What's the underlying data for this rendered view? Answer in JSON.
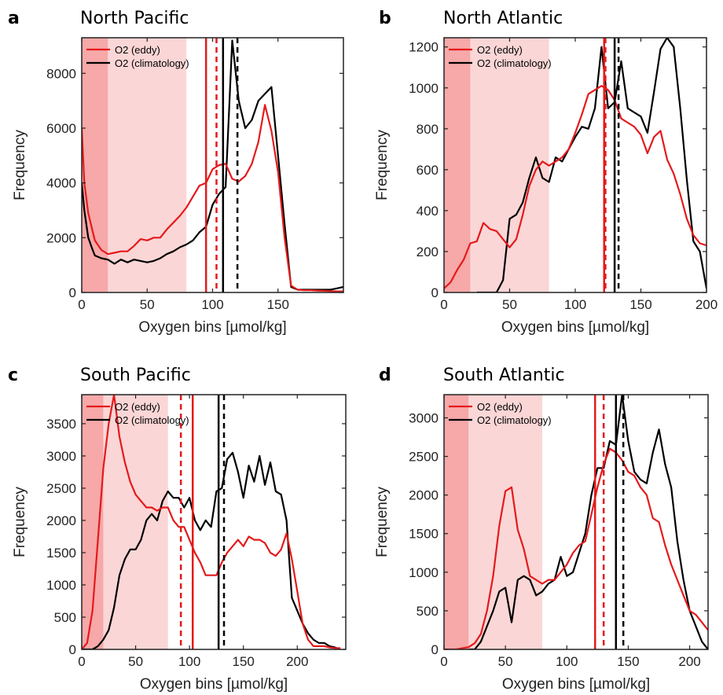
{
  "chart_data": [
    {
      "type": "line",
      "panel": "a",
      "title": "North Pacific",
      "xlabel": "Oxygen bins [µmol/kg]",
      "ylabel": "Frequency",
      "xlim": [
        0,
        200
      ],
      "ylim": [
        0,
        9300
      ],
      "xticks": [
        0,
        50,
        100,
        150
      ],
      "yticks": [
        0,
        2000,
        4000,
        6000,
        8000
      ],
      "legend_position": "top-left",
      "shade_dark": [
        0,
        20
      ],
      "shade_light": [
        20,
        80
      ],
      "series": [
        {
          "name": "O2 (eddy)",
          "color": "#e41a1c",
          "x": [
            0,
            2,
            5,
            8,
            10,
            15,
            20,
            25,
            30,
            35,
            40,
            45,
            50,
            55,
            60,
            65,
            70,
            75,
            80,
            85,
            90,
            95,
            100,
            105,
            110,
            115,
            120,
            125,
            130,
            135,
            140,
            145,
            150,
            155,
            160,
            165,
            170,
            175,
            180,
            185,
            190,
            195,
            200
          ],
          "y": [
            6000,
            4000,
            2900,
            2300,
            1900,
            1550,
            1400,
            1450,
            1500,
            1500,
            1700,
            1950,
            1900,
            2000,
            2000,
            2300,
            2550,
            2800,
            3100,
            3500,
            3900,
            4000,
            4500,
            4650,
            4700,
            4150,
            4050,
            4250,
            4700,
            5500,
            6850,
            5900,
            4400,
            2000,
            250,
            100,
            80,
            80,
            70,
            60,
            50,
            40,
            40
          ]
        },
        {
          "name": "O2 (climatology)",
          "color": "#000000",
          "x": [
            0,
            2,
            5,
            8,
            10,
            15,
            20,
            25,
            30,
            35,
            40,
            45,
            50,
            55,
            60,
            65,
            70,
            75,
            80,
            85,
            90,
            95,
            100,
            105,
            110,
            115,
            120,
            125,
            130,
            135,
            140,
            145,
            150,
            155,
            160,
            165,
            170,
            175,
            180,
            185,
            190,
            195,
            200
          ],
          "y": [
            4000,
            3000,
            2000,
            1600,
            1350,
            1250,
            1200,
            1050,
            1200,
            1100,
            1200,
            1150,
            1100,
            1150,
            1250,
            1400,
            1500,
            1650,
            1750,
            1900,
            2200,
            2400,
            3200,
            3600,
            3850,
            9200,
            7000,
            6000,
            6300,
            7000,
            7250,
            7500,
            5000,
            2500,
            200,
            100,
            100,
            100,
            100,
            100,
            100,
            150,
            200
          ]
        }
      ],
      "vlines": [
        {
          "x": 95,
          "color": "#e41a1c",
          "style": "solid"
        },
        {
          "x": 103,
          "color": "#e41a1c",
          "style": "dashed"
        },
        {
          "x": 108,
          "color": "#000000",
          "style": "solid"
        },
        {
          "x": 119,
          "color": "#000000",
          "style": "dashed"
        }
      ]
    },
    {
      "type": "line",
      "panel": "b",
      "title": "North Atlantic",
      "xlabel": "Oxygen bins [µmol/kg]",
      "ylabel": "Frequency",
      "xlim": [
        0,
        200
      ],
      "ylim": [
        0,
        1245
      ],
      "xticks": [
        0,
        50,
        100,
        150,
        200
      ],
      "yticks": [
        0,
        200,
        400,
        600,
        800,
        1000,
        1200
      ],
      "legend_position": "top-left",
      "shade_dark": [
        0,
        20
      ],
      "shade_light": [
        20,
        80
      ],
      "series": [
        {
          "name": "O2 (eddy)",
          "color": "#e41a1c",
          "x": [
            0,
            5,
            10,
            15,
            20,
            25,
            30,
            35,
            40,
            45,
            50,
            55,
            60,
            65,
            70,
            75,
            80,
            85,
            90,
            95,
            100,
            105,
            110,
            115,
            120,
            125,
            130,
            135,
            140,
            145,
            150,
            155,
            160,
            165,
            170,
            175,
            180,
            185,
            190,
            195,
            200
          ],
          "y": [
            20,
            50,
            110,
            160,
            240,
            250,
            340,
            310,
            300,
            260,
            220,
            260,
            380,
            520,
            600,
            640,
            620,
            640,
            660,
            700,
            780,
            870,
            970,
            990,
            1010,
            990,
            940,
            850,
            830,
            810,
            770,
            680,
            760,
            790,
            650,
            580,
            480,
            360,
            280,
            240,
            230
          ]
        },
        {
          "name": "O2 (climatology)",
          "color": "#000000",
          "x": [
            25,
            30,
            35,
            40,
            45,
            50,
            55,
            60,
            65,
            70,
            75,
            80,
            85,
            90,
            95,
            100,
            105,
            110,
            115,
            120,
            125,
            130,
            135,
            140,
            145,
            150,
            155,
            160,
            165,
            170,
            175,
            180,
            185,
            190,
            195,
            200
          ],
          "y": [
            0,
            0,
            0,
            0,
            60,
            360,
            380,
            440,
            560,
            660,
            560,
            540,
            660,
            640,
            700,
            760,
            810,
            800,
            900,
            1200,
            900,
            930,
            1130,
            900,
            880,
            860,
            780,
            980,
            1190,
            1245,
            1200,
            900,
            550,
            250,
            200,
            20
          ]
        }
      ],
      "vlines": [
        {
          "x": 122,
          "color": "#e41a1c",
          "style": "solid"
        },
        {
          "x": 123,
          "color": "#e41a1c",
          "style": "dashed"
        },
        {
          "x": 130,
          "color": "#000000",
          "style": "solid"
        },
        {
          "x": 133,
          "color": "#000000",
          "style": "dashed"
        }
      ]
    },
    {
      "type": "line",
      "panel": "c",
      "title": "South Pacific",
      "xlabel": "Oxygen bins [µmol/kg]",
      "ylabel": "Frequency",
      "xlim": [
        0,
        245
      ],
      "ylim": [
        0,
        3950
      ],
      "xticks": [
        0,
        50,
        100,
        150,
        200
      ],
      "yticks": [
        0,
        500,
        1000,
        1500,
        2000,
        2500,
        3000,
        3500
      ],
      "legend_position": "top-left",
      "shade_dark": [
        0,
        20
      ],
      "shade_light": [
        20,
        80
      ],
      "series": [
        {
          "name": "O2 (eddy)",
          "color": "#e41a1c",
          "x": [
            0,
            5,
            10,
            15,
            20,
            25,
            30,
            35,
            40,
            45,
            50,
            55,
            60,
            65,
            70,
            75,
            80,
            85,
            90,
            95,
            100,
            105,
            110,
            115,
            120,
            125,
            130,
            135,
            140,
            145,
            150,
            155,
            160,
            165,
            170,
            175,
            180,
            185,
            190,
            195,
            200,
            205,
            210,
            215,
            220,
            225,
            230,
            235,
            240
          ],
          "y": [
            0,
            100,
            600,
            1700,
            2800,
            3500,
            3950,
            3300,
            2900,
            2600,
            2400,
            2300,
            2200,
            2200,
            2150,
            2200,
            2200,
            2000,
            1900,
            1900,
            1700,
            1500,
            1350,
            1150,
            1150,
            1150,
            1350,
            1500,
            1600,
            1700,
            1600,
            1750,
            1700,
            1700,
            1650,
            1500,
            1450,
            1550,
            1800,
            1400,
            900,
            400,
            150,
            50,
            50,
            50,
            30,
            20,
            20
          ]
        },
        {
          "name": "O2 (climatology)",
          "color": "#000000",
          "x": [
            0,
            5,
            10,
            15,
            20,
            25,
            30,
            35,
            40,
            45,
            50,
            55,
            60,
            65,
            70,
            75,
            80,
            85,
            90,
            95,
            100,
            105,
            110,
            115,
            120,
            125,
            130,
            135,
            140,
            145,
            150,
            155,
            160,
            165,
            170,
            175,
            180,
            185,
            190,
            195,
            200,
            205,
            210,
            215,
            220,
            225,
            230,
            235,
            240
          ],
          "y": [
            0,
            0,
            0,
            50,
            150,
            300,
            650,
            1150,
            1400,
            1550,
            1550,
            1700,
            2000,
            2100,
            2000,
            2300,
            2450,
            2350,
            2350,
            2200,
            2350,
            2000,
            1850,
            2000,
            1900,
            2450,
            2500,
            2950,
            3050,
            2750,
            2350,
            2850,
            2600,
            3000,
            2550,
            2900,
            2450,
            2400,
            2000,
            800,
            600,
            400,
            250,
            150,
            100,
            100,
            50,
            30,
            0
          ]
        }
      ],
      "vlines": [
        {
          "x": 92,
          "color": "#e41a1c",
          "style": "dashed"
        },
        {
          "x": 103,
          "color": "#e41a1c",
          "style": "solid"
        },
        {
          "x": 127,
          "color": "#000000",
          "style": "solid"
        },
        {
          "x": 132,
          "color": "#000000",
          "style": "dashed"
        }
      ]
    },
    {
      "type": "line",
      "panel": "d",
      "title": "South Atlantic",
      "xlabel": "Oxygen bins [µmol/kg]",
      "ylabel": "Frequency",
      "xlim": [
        0,
        215
      ],
      "ylim": [
        0,
        3300
      ],
      "xticks": [
        0,
        50,
        100,
        150,
        200
      ],
      "yticks": [
        0,
        500,
        1000,
        1500,
        2000,
        2500,
        3000
      ],
      "legend_position": "top-left",
      "shade_dark": [
        0,
        20
      ],
      "shade_light": [
        20,
        80
      ],
      "series": [
        {
          "name": "O2 (eddy)",
          "color": "#e41a1c",
          "x": [
            0,
            10,
            20,
            25,
            30,
            35,
            40,
            45,
            50,
            55,
            60,
            65,
            70,
            75,
            80,
            85,
            90,
            95,
            100,
            105,
            110,
            115,
            120,
            125,
            130,
            135,
            140,
            145,
            150,
            155,
            160,
            165,
            170,
            175,
            180,
            185,
            190,
            195,
            200,
            205,
            210,
            215
          ],
          "y": [
            0,
            0,
            30,
            80,
            200,
            500,
            950,
            1600,
            2050,
            2100,
            1550,
            1300,
            950,
            900,
            850,
            900,
            900,
            1000,
            1100,
            1250,
            1350,
            1400,
            1750,
            2100,
            2400,
            2600,
            2550,
            2450,
            2300,
            2250,
            2100,
            2000,
            1700,
            1650,
            1350,
            1100,
            900,
            700,
            500,
            450,
            350,
            250
          ]
        },
        {
          "name": "O2 (climatology)",
          "color": "#000000",
          "x": [
            20,
            25,
            30,
            35,
            40,
            45,
            50,
            55,
            60,
            65,
            70,
            75,
            80,
            85,
            90,
            95,
            100,
            105,
            110,
            115,
            120,
            125,
            130,
            135,
            140,
            145,
            150,
            155,
            160,
            165,
            170,
            175,
            180,
            185,
            190,
            195,
            200,
            205,
            210,
            215
          ],
          "y": [
            0,
            0,
            100,
            300,
            500,
            750,
            800,
            350,
            900,
            950,
            900,
            700,
            750,
            850,
            900,
            1200,
            950,
            1000,
            1250,
            1500,
            2000,
            2350,
            2350,
            2700,
            2650,
            3300,
            2700,
            2300,
            2200,
            2150,
            2550,
            2850,
            2400,
            2100,
            1400,
            900,
            500,
            300,
            100,
            0
          ]
        }
      ],
      "vlines": [
        {
          "x": 123,
          "color": "#e41a1c",
          "style": "solid"
        },
        {
          "x": 130,
          "color": "#e41a1c",
          "style": "dashed"
        },
        {
          "x": 140,
          "color": "#000000",
          "style": "solid"
        },
        {
          "x": 146,
          "color": "#000000",
          "style": "dashed"
        }
      ]
    }
  ]
}
